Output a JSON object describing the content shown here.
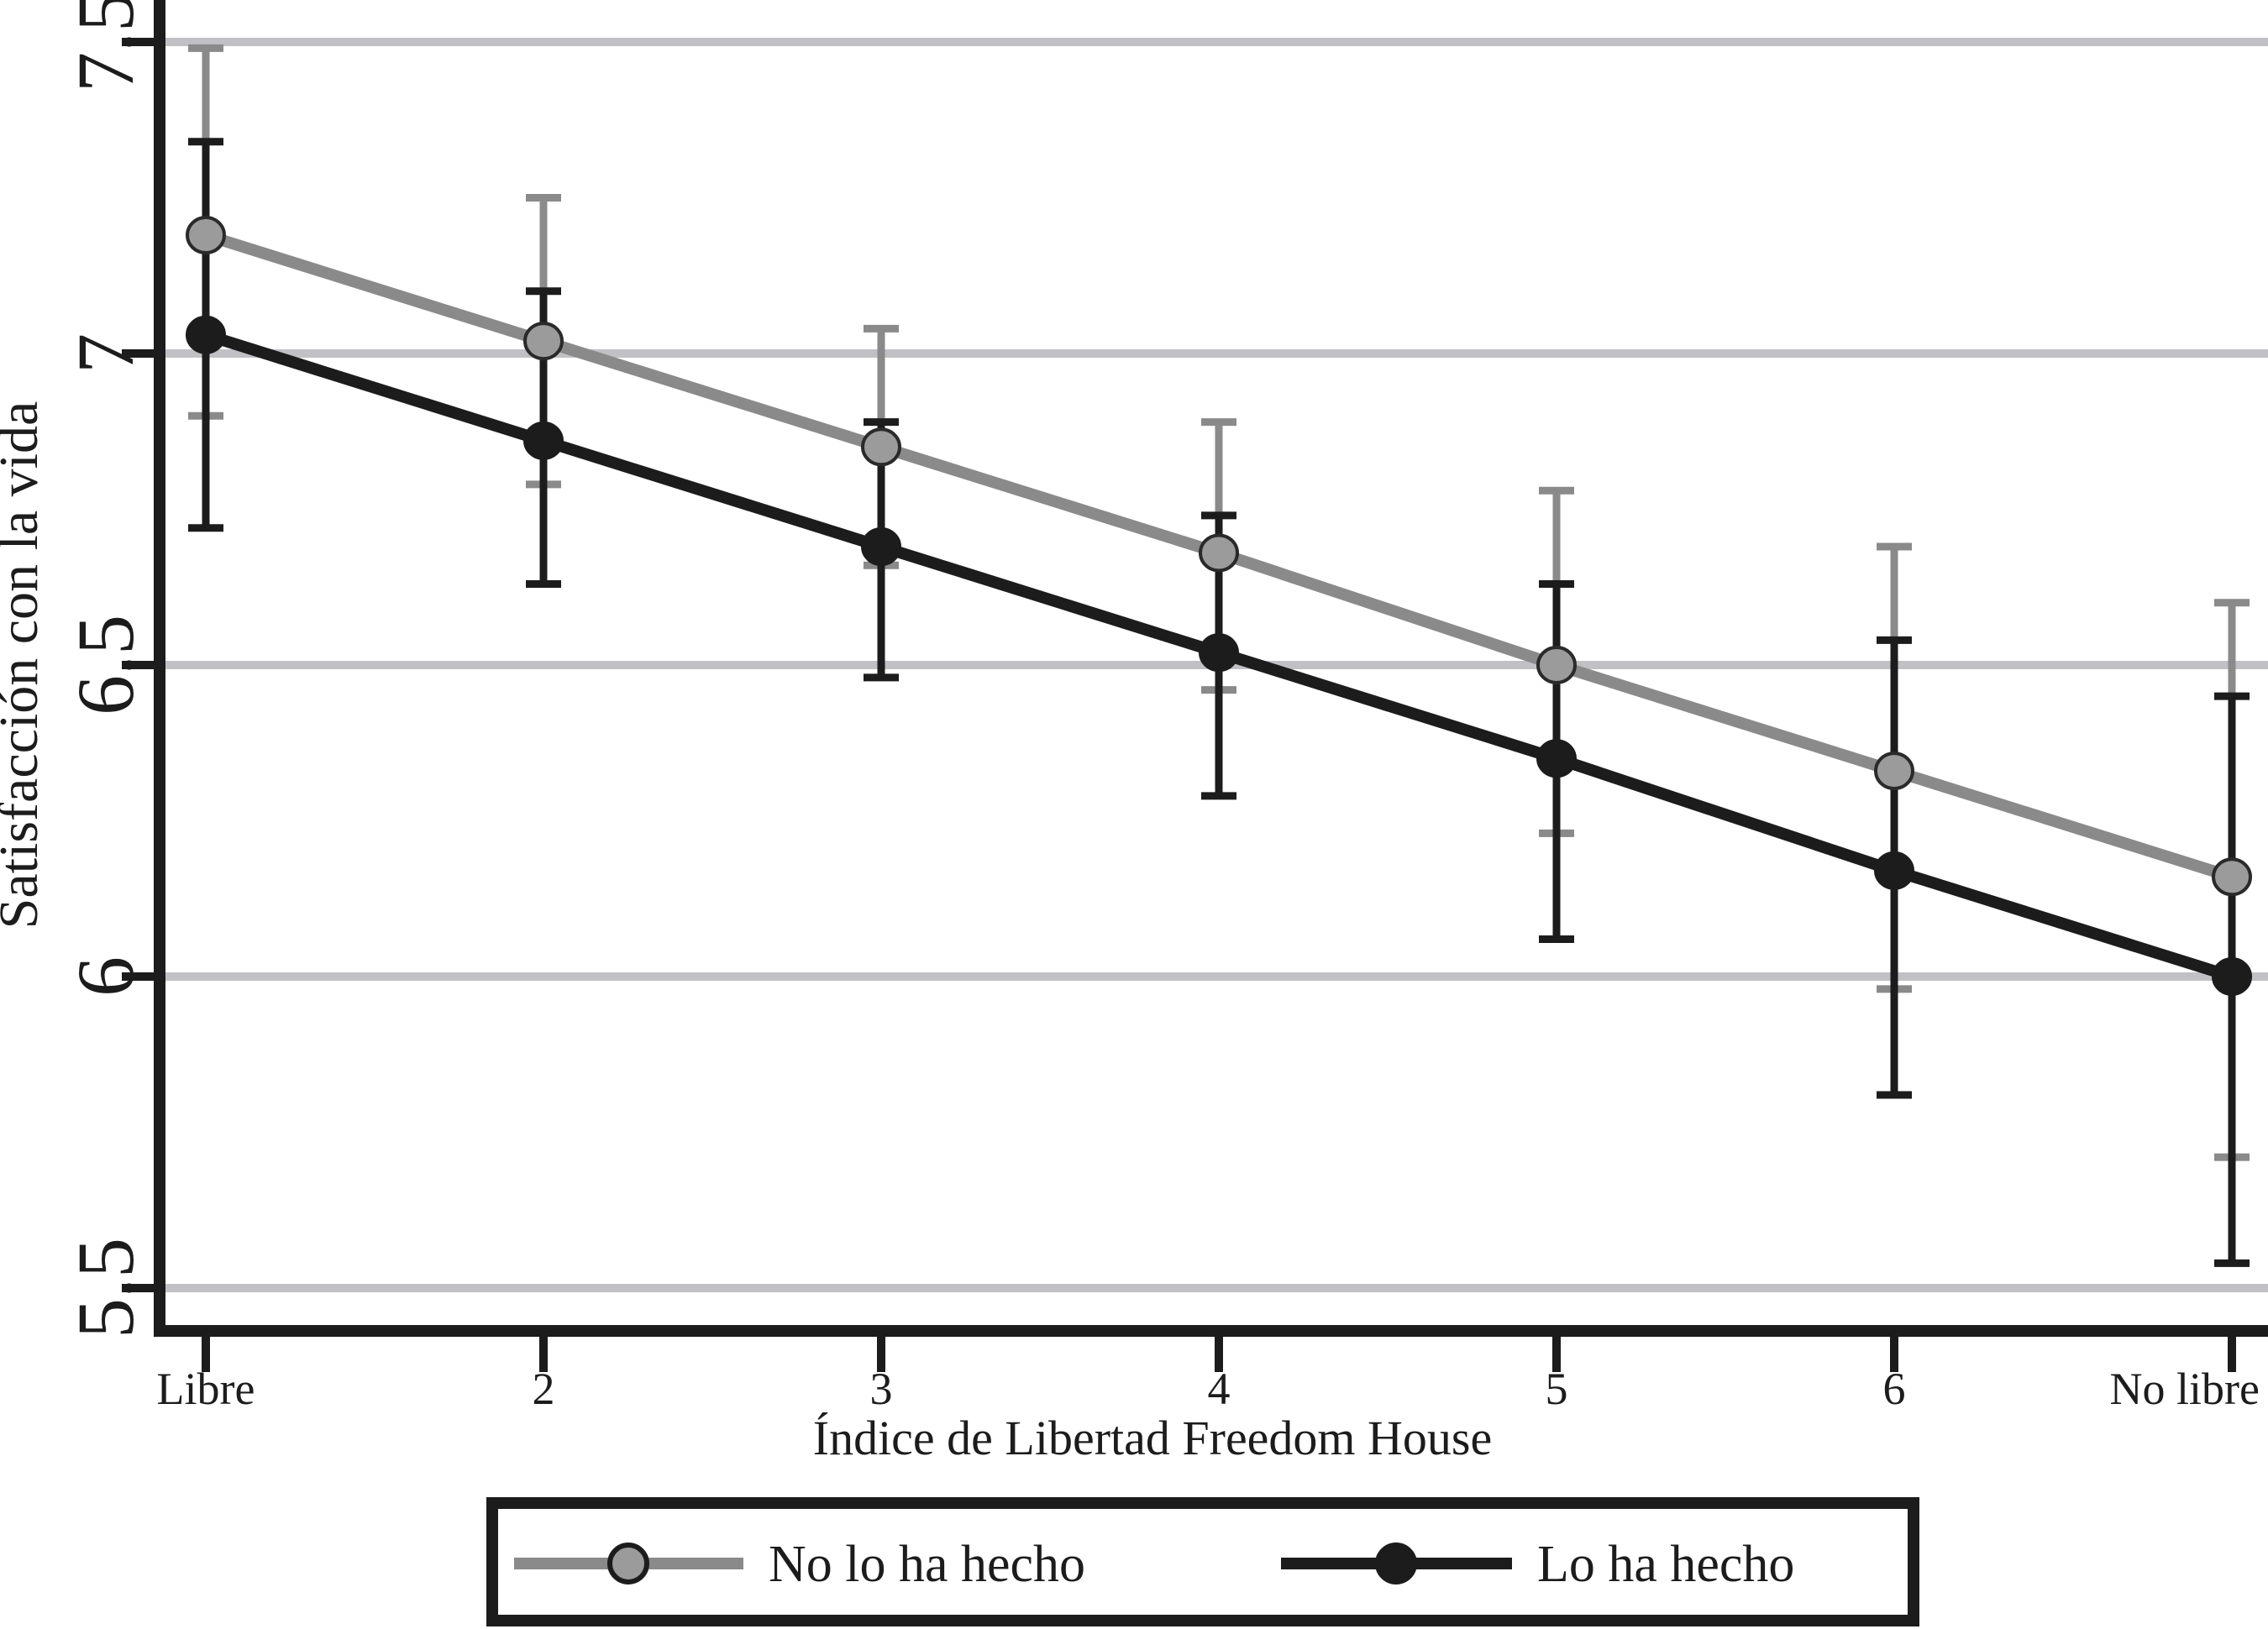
{
  "chart_data": {
    "type": "line",
    "title": "",
    "xlabel": "Índice de Libertad Freedom House",
    "ylabel": "Satisfacción con la vida",
    "categories": [
      "Libre",
      "2",
      "3",
      "4",
      "5",
      "6",
      "No libre"
    ],
    "yticks": [
      7.5,
      7,
      6.5,
      6,
      5.5
    ],
    "ytick_labels": [
      "7.5",
      "7",
      "6.5",
      "6",
      "5.5"
    ],
    "ylim": [
      5.43,
      7.57
    ],
    "grid": true,
    "error_bars": true,
    "legend_position": "bottom",
    "series": [
      {
        "name": "No lo ha hecho",
        "color": "#8a8a8a",
        "marker_fill": "#9b9b9b",
        "marker_stroke": "#2a2a2a",
        "values": [
          7.19,
          7.02,
          6.85,
          6.68,
          6.5,
          6.33,
          6.16
        ],
        "ci_high": [
          7.49,
          7.25,
          7.04,
          6.89,
          6.78,
          6.69,
          6.6
        ],
        "ci_low": [
          6.9,
          6.79,
          6.66,
          6.46,
          6.23,
          5.98,
          5.71
        ]
      },
      {
        "name": "Lo ha hecho",
        "color": "#1c1c1c",
        "marker_fill": "#1c1c1c",
        "marker_stroke": "#1c1c1c",
        "values": [
          7.03,
          6.86,
          6.69,
          6.52,
          6.35,
          6.17,
          6.0
        ],
        "ci_high": [
          7.34,
          7.1,
          6.89,
          6.74,
          6.63,
          6.54,
          6.45
        ],
        "ci_low": [
          6.72,
          6.63,
          6.48,
          6.29,
          6.06,
          5.81,
          5.54
        ]
      }
    ]
  },
  "colors": {
    "background": "#ffffff",
    "axis": "#1c1c1c",
    "gridline": "#c1c1c5",
    "legend_border": "#1c1c1c",
    "legend_background": "#ffffff"
  }
}
